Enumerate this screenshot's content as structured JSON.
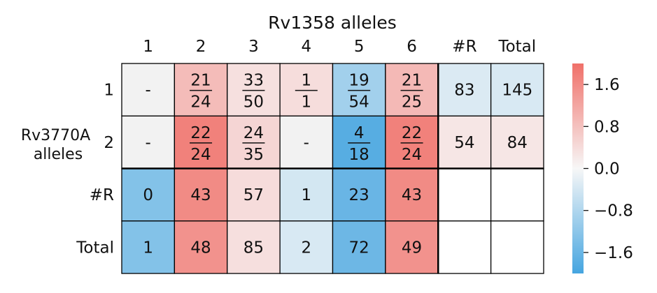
{
  "chart_data": {
    "type": "heatmap",
    "title": "Rv1358 alleles",
    "ylabel": [
      "Rv3770A",
      "alleles"
    ],
    "col_labels": [
      "1",
      "2",
      "3",
      "4",
      "5",
      "6",
      "#R",
      "Total"
    ],
    "row_labels": [
      "1",
      "2",
      "#R",
      "Total"
    ],
    "cells": [
      [
        {
          "v": -1000,
          "t": "-"
        },
        {
          "v": 0.87,
          "num": "21",
          "den": "24"
        },
        {
          "v": 0.34,
          "num": "33",
          "den": "50"
        },
        {
          "v": 0.38,
          "num": "1",
          "den": "1"
        },
        {
          "v": -0.95,
          "num": "19",
          "den": "54"
        },
        {
          "v": 0.92,
          "num": "21",
          "den": "25"
        },
        {
          "v": -0.32,
          "t": "83"
        },
        {
          "v": -0.35,
          "t": "145"
        }
      ],
      [
        {
          "v": -1000,
          "t": "-"
        },
        {
          "v": 1.75,
          "num": "22",
          "den": "24"
        },
        {
          "v": 0.5,
          "num": "24",
          "den": "35"
        },
        {
          "v": -1000,
          "t": "-"
        },
        {
          "v": -1.8,
          "num": "4",
          "den": "18"
        },
        {
          "v": 1.75,
          "num": "22",
          "den": "24"
        },
        {
          "v": 0.25,
          "t": "54"
        },
        {
          "v": 0.25,
          "t": "84"
        }
      ],
      [
        {
          "v": -1.3,
          "t": "0"
        },
        {
          "v": 1.6,
          "t": "43"
        },
        {
          "v": 0.4,
          "t": "57"
        },
        {
          "v": -0.4,
          "t": "1"
        },
        {
          "v": -1.6,
          "t": "23"
        },
        {
          "v": 1.6,
          "t": "43"
        },
        {
          "v": null,
          "t": ""
        },
        {
          "v": null,
          "t": ""
        }
      ],
      [
        {
          "v": -1.3,
          "t": "1"
        },
        {
          "v": 1.5,
          "t": "48"
        },
        {
          "v": 0.35,
          "t": "85"
        },
        {
          "v": -0.35,
          "t": "2"
        },
        {
          "v": -1.55,
          "t": "72"
        },
        {
          "v": 1.5,
          "t": "49"
        },
        {
          "v": null,
          "t": ""
        },
        {
          "v": null,
          "t": ""
        }
      ]
    ],
    "colorbar": {
      "range": [
        -2.0,
        2.0
      ],
      "ticks": [
        1.6,
        0.8,
        0.0,
        -0.8,
        -1.6
      ],
      "tick_labels": [
        "1.6",
        "0.8",
        "0.0",
        "−0.8",
        "−1.6"
      ],
      "low_color": "#45a5e0",
      "mid_color": "#f2f2f2",
      "high_color": "#f07069"
    },
    "missing_color": "#f2f2f2",
    "empty_color": "#ffffff"
  }
}
